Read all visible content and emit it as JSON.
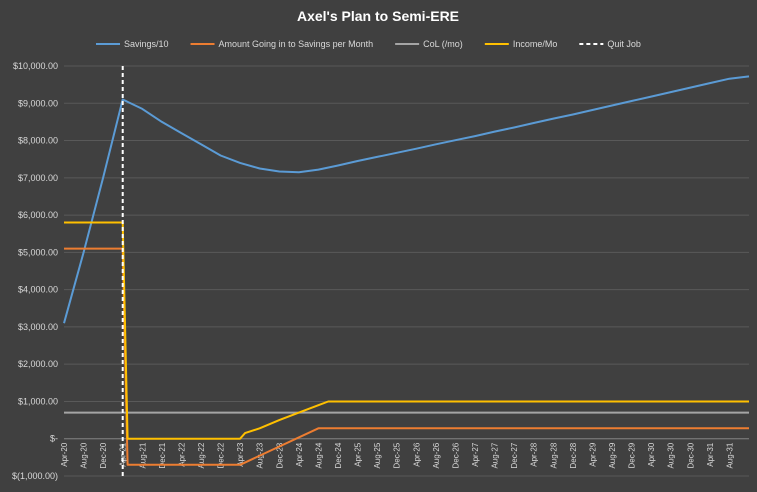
{
  "chart_data": {
    "type": "line",
    "title": "Axel's Plan to Semi-ERE",
    "background_color": "#404040",
    "grid": true,
    "legend_position": "top",
    "y_range": [
      -1000,
      10000
    ],
    "y_ticks": [
      -1000,
      0,
      1000,
      2000,
      3000,
      4000,
      5000,
      6000,
      7000,
      8000,
      9000,
      10000
    ],
    "y_tick_labels": [
      "$(1,000.00)",
      "$-",
      "$1,000.00",
      "$2,000.00",
      "$3,000.00",
      "$4,000.00",
      "$5,000.00",
      "$6,000.00",
      "$7,000.00",
      "$8,000.00",
      "$9,000.00",
      "$10,000.00"
    ],
    "x_range": [
      "2020-04",
      "2031-12"
    ],
    "x_tick_labels": [
      {
        "date": "2020-04",
        "label": "Apr-20"
      },
      {
        "date": "2020-08",
        "label": "Aug-20"
      },
      {
        "date": "2020-12",
        "label": "Dec-20"
      },
      {
        "date": "2021-04",
        "label": "Apr-21"
      },
      {
        "date": "2021-08",
        "label": "Aug-21"
      },
      {
        "date": "2021-12",
        "label": "Dec-21"
      },
      {
        "date": "2022-04",
        "label": "Apr-22"
      },
      {
        "date": "2022-08",
        "label": "Aug-22"
      },
      {
        "date": "2022-12",
        "label": "Dec-22"
      },
      {
        "date": "2023-04",
        "label": "Apr-23"
      },
      {
        "date": "2023-08",
        "label": "Aug-23"
      },
      {
        "date": "2023-12",
        "label": "Dec-23"
      },
      {
        "date": "2024-04",
        "label": "Apr-24"
      },
      {
        "date": "2024-08",
        "label": "Aug-24"
      },
      {
        "date": "2024-12",
        "label": "Dec-24"
      },
      {
        "date": "2025-04",
        "label": "Apr-25"
      },
      {
        "date": "2025-08",
        "label": "Aug-25"
      },
      {
        "date": "2025-12",
        "label": "Dec-25"
      },
      {
        "date": "2026-04",
        "label": "Apr-26"
      },
      {
        "date": "2026-08",
        "label": "Aug-26"
      },
      {
        "date": "2026-12",
        "label": "Dec-26"
      },
      {
        "date": "2027-04",
        "label": "Apr-27"
      },
      {
        "date": "2027-08",
        "label": "Aug-27"
      },
      {
        "date": "2027-12",
        "label": "Dec-27"
      },
      {
        "date": "2028-04",
        "label": "Apr-28"
      },
      {
        "date": "2028-08",
        "label": "Aug-28"
      },
      {
        "date": "2028-12",
        "label": "Dec-28"
      },
      {
        "date": "2029-04",
        "label": "Apr-29"
      },
      {
        "date": "2029-08",
        "label": "Aug-29"
      },
      {
        "date": "2029-12",
        "label": "Dec-29"
      },
      {
        "date": "2030-04",
        "label": "Apr-30"
      },
      {
        "date": "2030-08",
        "label": "Aug-30"
      },
      {
        "date": "2030-12",
        "label": "Dec-30"
      },
      {
        "date": "2031-04",
        "label": "Apr-31"
      },
      {
        "date": "2031-08",
        "label": "Aug-31"
      }
    ],
    "series": [
      {
        "name": "Savings/10",
        "color": "#5b9bd5",
        "points": [
          [
            "2020-04",
            3100
          ],
          [
            "2020-08",
            5000
          ],
          [
            "2020-12",
            7000
          ],
          [
            "2021-04",
            9100
          ],
          [
            "2021-08",
            8850
          ],
          [
            "2021-12",
            8500
          ],
          [
            "2022-04",
            8200
          ],
          [
            "2022-08",
            7900
          ],
          [
            "2022-12",
            7600
          ],
          [
            "2023-04",
            7400
          ],
          [
            "2023-08",
            7250
          ],
          [
            "2023-12",
            7170
          ],
          [
            "2024-04",
            7150
          ],
          [
            "2024-08",
            7220
          ],
          [
            "2024-12",
            7330
          ],
          [
            "2025-04",
            7450
          ],
          [
            "2025-08",
            7560
          ],
          [
            "2025-12",
            7670
          ],
          [
            "2026-04",
            7780
          ],
          [
            "2026-08",
            7900
          ],
          [
            "2026-12",
            8010
          ],
          [
            "2027-04",
            8120
          ],
          [
            "2027-08",
            8240
          ],
          [
            "2027-12",
            8350
          ],
          [
            "2028-04",
            8470
          ],
          [
            "2028-08",
            8590
          ],
          [
            "2028-12",
            8700
          ],
          [
            "2029-04",
            8820
          ],
          [
            "2029-08",
            8940
          ],
          [
            "2029-12",
            9060
          ],
          [
            "2030-04",
            9180
          ],
          [
            "2030-08",
            9300
          ],
          [
            "2030-12",
            9420
          ],
          [
            "2031-04",
            9540
          ],
          [
            "2031-08",
            9660
          ],
          [
            "2031-12",
            9720
          ]
        ]
      },
      {
        "name": "Amount Going in to Savings per Month",
        "color": "#ed7d31",
        "points": [
          [
            "2020-04",
            5100
          ],
          [
            "2021-04",
            5100
          ],
          [
            "2021-05",
            -700
          ],
          [
            "2022-12",
            -700
          ],
          [
            "2023-04",
            -700
          ],
          [
            "2024-08",
            280
          ],
          [
            "2031-12",
            280
          ]
        ]
      },
      {
        "name": "CoL (/mo)",
        "color": "#a5a5a5",
        "points": [
          [
            "2020-04",
            700
          ],
          [
            "2031-12",
            700
          ]
        ]
      },
      {
        "name": "Income/Mo",
        "color": "#ffc000",
        "points": [
          [
            "2020-04",
            5800
          ],
          [
            "2021-04",
            5800
          ],
          [
            "2021-05",
            0
          ],
          [
            "2022-12",
            0
          ],
          [
            "2023-04",
            0
          ],
          [
            "2023-05",
            150
          ],
          [
            "2023-08",
            280
          ],
          [
            "2023-12",
            500
          ],
          [
            "2024-04",
            700
          ],
          [
            "2024-08",
            900
          ],
          [
            "2024-10",
            1000
          ],
          [
            "2031-12",
            1000
          ]
        ]
      }
    ],
    "vlines": [
      {
        "name": "Quit Job",
        "date": "2021-04",
        "color": "#ffffff",
        "dashed": true
      }
    ],
    "legend": [
      {
        "name": "Savings/10",
        "color": "#5b9bd5",
        "dashed": false
      },
      {
        "name": "Amount Going in to Savings per Month",
        "color": "#ed7d31",
        "dashed": false
      },
      {
        "name": "CoL (/mo)",
        "color": "#a5a5a5",
        "dashed": false
      },
      {
        "name": "Income/Mo",
        "color": "#ffc000",
        "dashed": false
      },
      {
        "name": "Quit Job",
        "color": "#ffffff",
        "dashed": true
      }
    ]
  }
}
